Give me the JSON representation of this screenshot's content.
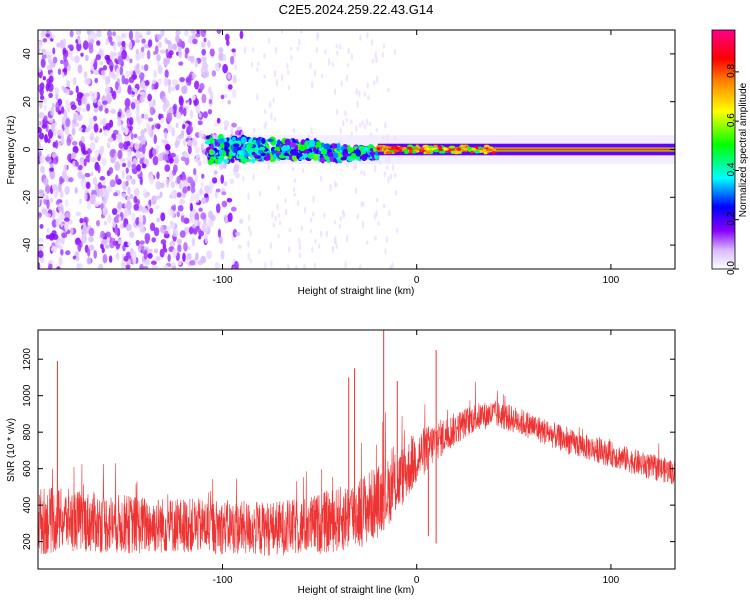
{
  "title": "C2E5.2024.259.22.43.G14",
  "chart_data": [
    {
      "type": "heatmap",
      "xlabel": "Height of straight line (km)",
      "ylabel": "Frequency (Hz)",
      "xlim": [
        -195,
        133
      ],
      "ylim": [
        -50,
        50
      ],
      "x_ticks": [
        -100,
        0,
        100
      ],
      "x_tick_labels": [
        "-100",
        "0",
        "100"
      ],
      "y_ticks": [
        -40,
        -20,
        0,
        20,
        40
      ],
      "y_tick_labels": [
        "-40",
        "-20",
        "0",
        "20",
        "40"
      ],
      "colorbar": {
        "label": "Normalized spectral amplitude",
        "range": [
          0,
          0.97
        ],
        "ticks": [
          0.0,
          0.2,
          0.4,
          0.6,
          0.8
        ],
        "tick_labels": [
          "0.0",
          "0.2",
          "0.4",
          "0.6",
          "0.8"
        ],
        "colormap": [
          "#ffffff",
          "#d8b8ff",
          "#8800ff",
          "#0000ff",
          "#00ffff",
          "#00ff00",
          "#ffff00",
          "#ff8800",
          "#ff0000",
          "#ff0088"
        ]
      },
      "regions": [
        {
          "x": [
            -195,
            -108
          ],
          "freq": [
            -50,
            50
          ],
          "level": 0.15
        },
        {
          "x": [
            -108,
            -20
          ],
          "freq": [
            -6,
            6
          ],
          "level": 0.45
        },
        {
          "x": [
            -20,
            133
          ],
          "freq": [
            -2,
            2
          ],
          "level": 0.85
        }
      ]
    },
    {
      "type": "line",
      "xlabel": "Height of straight line (km)",
      "ylabel": "SNR (10 * v/v)",
      "xlim": [
        -195,
        133
      ],
      "ylim": [
        50,
        1360
      ],
      "x_ticks": [
        -100,
        0,
        100
      ],
      "x_tick_labels": [
        "-100",
        "0",
        "100"
      ],
      "y_ticks": [
        200,
        400,
        600,
        800,
        1000,
        1200
      ],
      "y_tick_labels": [
        "200",
        "400",
        "600",
        "800",
        "1000",
        "1200"
      ],
      "color": "#ee3333",
      "series": [
        {
          "x": [
            -195,
            -180,
            -160,
            -140,
            -120,
            -100,
            -80,
            -60,
            -40,
            -30,
            -20,
            -10,
            0,
            10,
            20,
            30,
            40,
            50,
            60,
            80,
            100,
            120,
            133
          ],
          "y": [
            310,
            320,
            300,
            290,
            290,
            280,
            270,
            280,
            320,
            360,
            420,
            520,
            660,
            750,
            820,
            880,
            900,
            870,
            830,
            740,
            680,
            610,
            580
          ],
          "spread": [
            190,
            170,
            165,
            160,
            150,
            150,
            150,
            155,
            180,
            200,
            200,
            170,
            150,
            110,
            90,
            80,
            75,
            75,
            75,
            70,
            70,
            70,
            70
          ]
        }
      ],
      "spikes": [
        {
          "x": -185,
          "y": 1190
        },
        {
          "x": -35,
          "y": 1100
        },
        {
          "x": -32,
          "y": 1150
        },
        {
          "x": -17,
          "y": 1360
        },
        {
          "x": -10,
          "y": 1080
        },
        {
          "x": 10,
          "y": 1250
        }
      ],
      "dips": [
        {
          "x": 6,
          "y": 230
        },
        {
          "x": 10,
          "y": 190
        }
      ]
    }
  ]
}
